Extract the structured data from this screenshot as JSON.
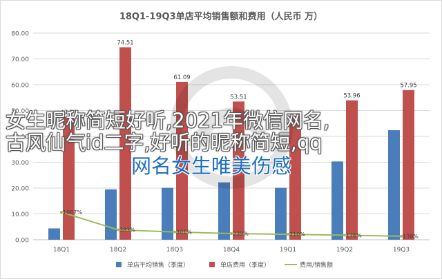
{
  "chart_data": {
    "type": "bar",
    "title": "18Q1-19Q3单店平均销售额和费用（人民币 万）",
    "categories": [
      "18Q1",
      "18Q2",
      "18Q3",
      "18Q4",
      "19Q1",
      "19Q2",
      "19Q3"
    ],
    "y_ticks": [
      "0.00",
      "10.00",
      "20.00",
      "30.00",
      "40.00",
      "50.00",
      "60.00",
      "70.00",
      "80.00"
    ],
    "ylim": [
      0,
      80
    ],
    "grid": true,
    "legend_position": "bottom",
    "series": [
      {
        "name": "单店平均销售（季度）",
        "kind": "bar",
        "color": "#4a7ebb",
        "values": [
          4.4,
          19.5,
          20.1,
          22.2,
          20.1,
          30.3,
          42.4
        ]
      },
      {
        "name": "单店费用（季度）",
        "kind": "bar",
        "color": "#c0504d",
        "values": [
          47.53,
          74.51,
          61.09,
          53.51,
          47.9,
          53.96,
          57.95
        ],
        "labels": [
          "47.53",
          "74.51",
          "61.09",
          "53.51",
          "",
          "53.96",
          "57.95"
        ]
      },
      {
        "name": "费用/销售额",
        "kind": "line",
        "color": "#9bbb59",
        "values": [
          10.67,
          3.83,
          3.01,
          2.39,
          2.1,
          1.76,
          1.38
        ],
        "labels": [
          "1067%",
          "383%",
          "301%",
          "239%",
          "210%",
          "176%",
          "138%"
        ]
      }
    ]
  },
  "overlay": {
    "line1": "女生昵称简短好听,2021年微信网名,",
    "line2": "古风仙气id二字,好听的昵称简短,qq",
    "line3": "网名女生唯美伤感"
  }
}
